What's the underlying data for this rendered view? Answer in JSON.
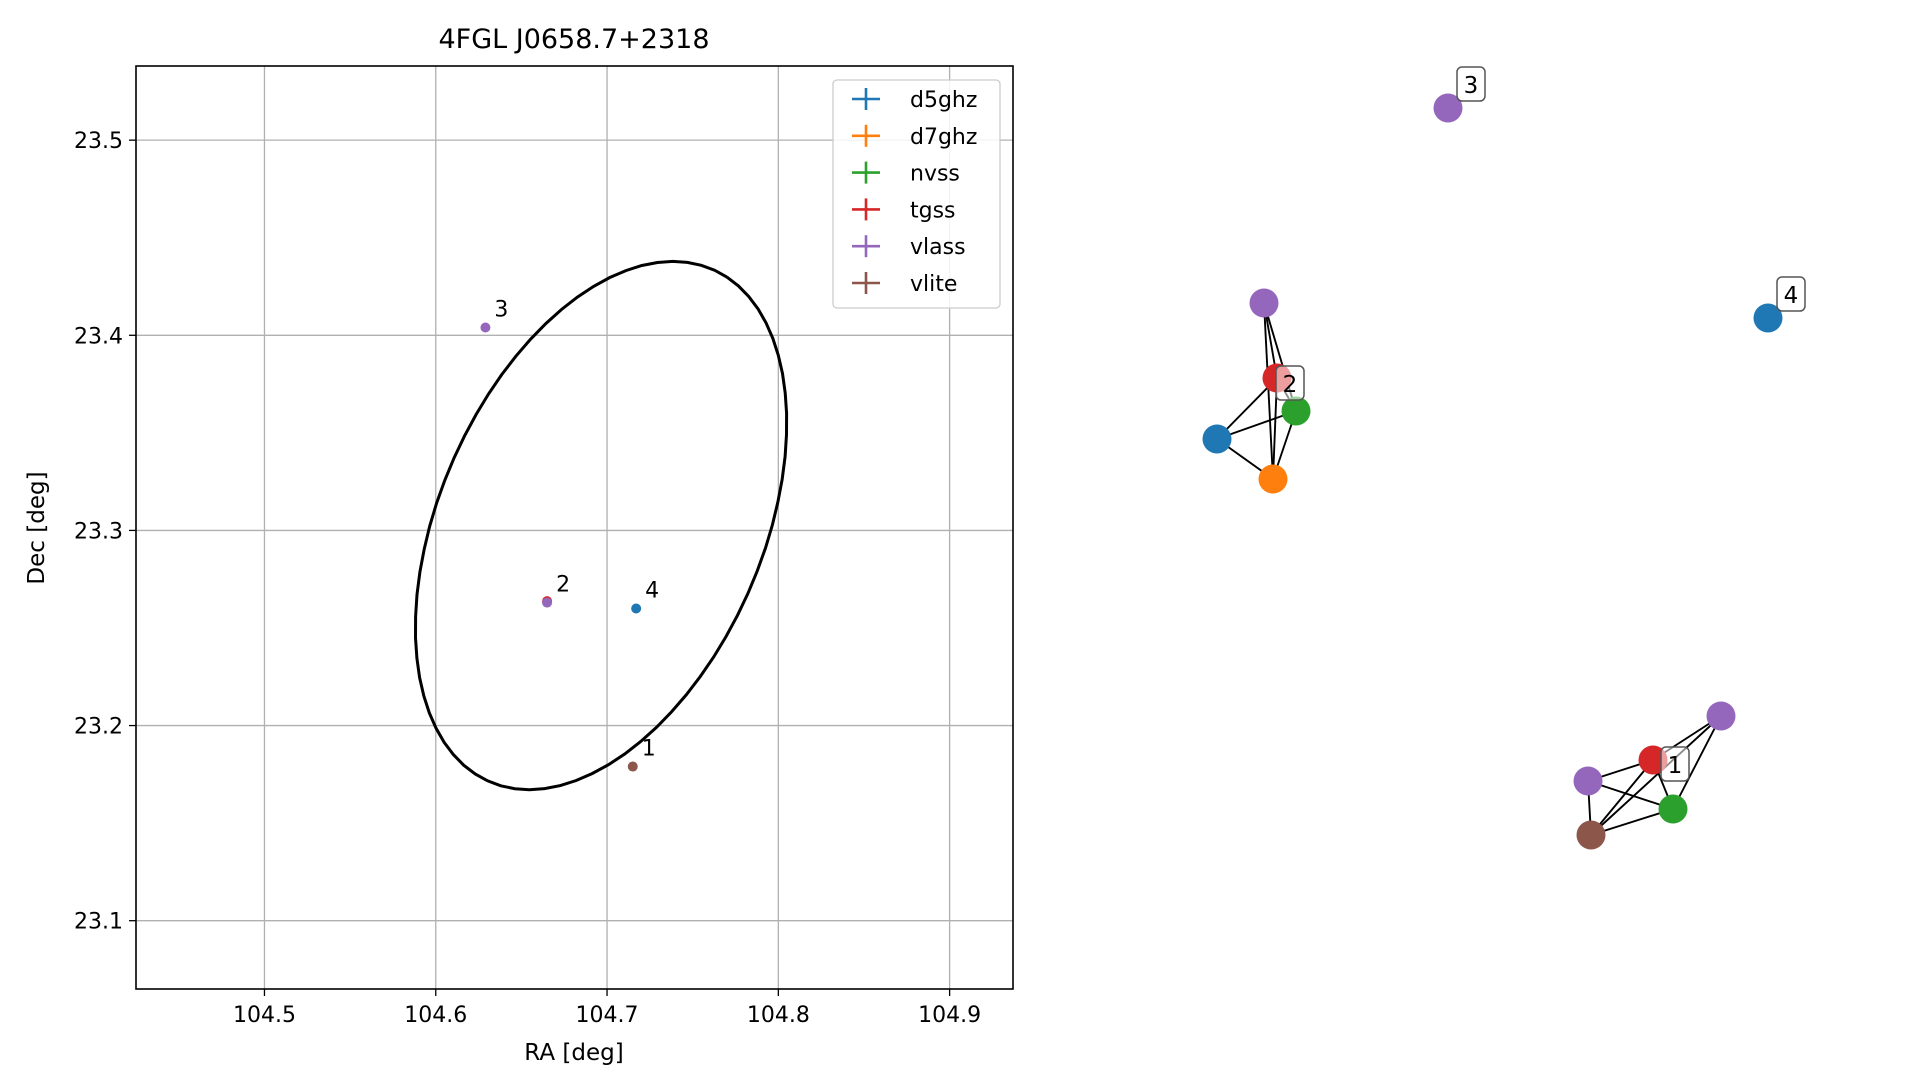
{
  "chart_data": [
    {
      "type": "scatter",
      "title": "4FGL J0658.7+2318",
      "xlabel": "RA [deg]",
      "ylabel": "Dec [deg]",
      "xlim": [
        104.425,
        104.937
      ],
      "ylim": [
        23.065,
        23.538
      ],
      "xticks": [
        "104.5",
        "104.6",
        "104.7",
        "104.8",
        "104.9"
      ],
      "yticks": [
        "23.1",
        "23.2",
        "23.3",
        "23.4",
        "23.5"
      ],
      "grid": true,
      "legend_position": "top-right",
      "legend": [
        {
          "name": "d5ghz",
          "color": "#1f77b4"
        },
        {
          "name": "d7ghz",
          "color": "#ff7f0e"
        },
        {
          "name": "nvss",
          "color": "#2ca02c"
        },
        {
          "name": "tgss",
          "color": "#d62728"
        },
        {
          "name": "vlass",
          "color": "#9467bd"
        },
        {
          "name": "vlite",
          "color": "#8c564b"
        }
      ],
      "points": [
        {
          "label": "1",
          "ra": 104.715,
          "dec": 23.179,
          "color": "#8c564b"
        },
        {
          "label": "2",
          "ra": 104.665,
          "dec": 23.263,
          "color": "#9467bd"
        },
        {
          "label": "3",
          "ra": 104.629,
          "dec": 23.404,
          "color": "#9467bd"
        },
        {
          "label": "4",
          "ra": 104.717,
          "dec": 23.26,
          "color": "#1f77b4"
        }
      ],
      "ellipse": {
        "center_ra": 104.6965,
        "center_dec": 23.3025,
        "semi_major_deg": 0.147,
        "semi_minor_deg": 0.092,
        "angle_deg": 60,
        "color": "#000000"
      }
    },
    {
      "type": "network",
      "groups": [
        {
          "label": "1",
          "nodes": [
            {
              "color": "#d62728"
            },
            {
              "color": "#9467bd"
            },
            {
              "color": "#9467bd"
            },
            {
              "color": "#2ca02c"
            },
            {
              "color": "#8c564b"
            }
          ],
          "edges": [
            [
              0,
              1
            ],
            [
              0,
              3
            ],
            [
              0,
              4
            ],
            [
              1,
              3
            ],
            [
              1,
              4
            ],
            [
              2,
              3
            ],
            [
              2,
              4
            ],
            [
              3,
              4
            ],
            [
              0,
              2
            ]
          ]
        },
        {
          "label": "2",
          "nodes": [
            {
              "color": "#d62728"
            },
            {
              "color": "#9467bd"
            },
            {
              "color": "#2ca02c"
            },
            {
              "color": "#1f77b4"
            },
            {
              "color": "#ff7f0e"
            }
          ],
          "edges": [
            [
              0,
              1
            ],
            [
              0,
              2
            ],
            [
              0,
              3
            ],
            [
              0,
              4
            ],
            [
              1,
              2
            ],
            [
              2,
              3
            ],
            [
              2,
              4
            ],
            [
              3,
              4
            ],
            [
              1,
              4
            ]
          ]
        },
        {
          "label": "3",
          "nodes": [
            {
              "color": "#9467bd"
            }
          ],
          "edges": []
        },
        {
          "label": "4",
          "nodes": [
            {
              "color": "#1f77b4"
            }
          ],
          "edges": []
        }
      ]
    }
  ]
}
